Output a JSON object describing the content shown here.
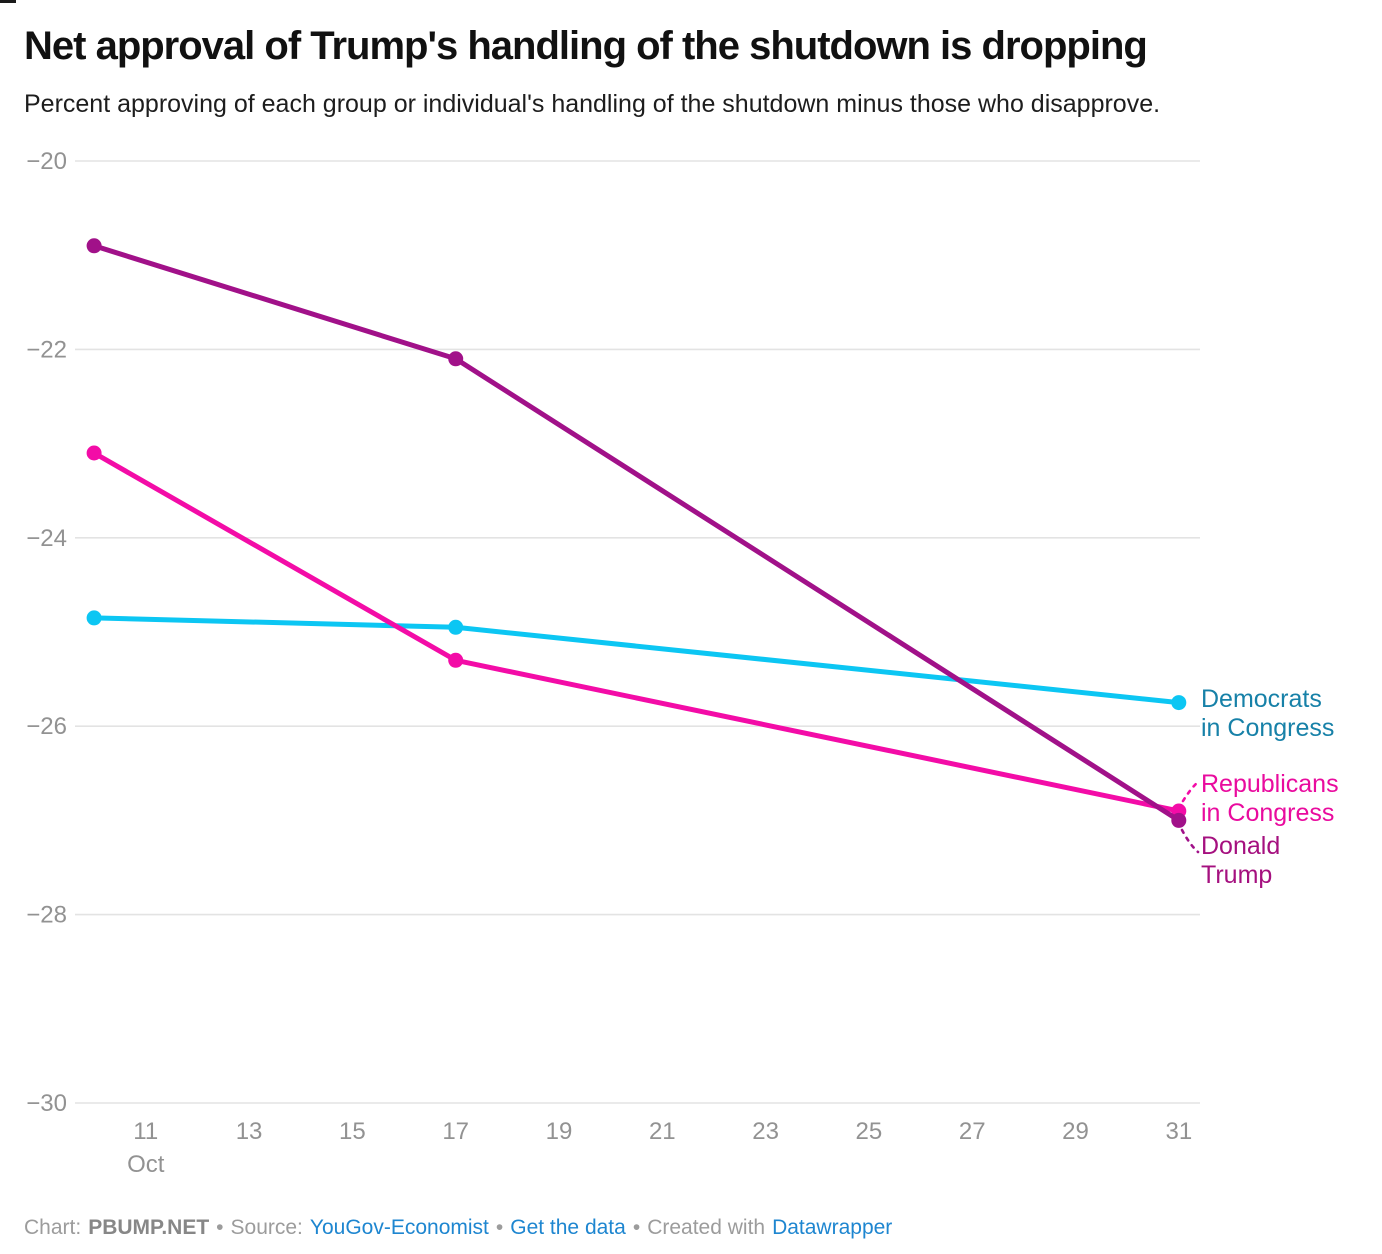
{
  "header": {
    "title": "Net approval of Trump's handling of the shutdown is dropping",
    "subtitle": "Percent approving of each group or individual's handling of the shutdown minus those who disapprove."
  },
  "chart_data": {
    "type": "line",
    "title": "Net approval of Trump's handling of the shutdown is dropping",
    "xlabel": "",
    "ylabel": "",
    "grid": "horizontal gridlines on",
    "legend_position": "direct end-of-line labels at right",
    "xlim": [
      9.63,
      31.41
    ],
    "ylim": [
      -30,
      -20
    ],
    "x": [
      10,
      17,
      31
    ],
    "x_ticks": [
      {
        "day": 11,
        "label": "11",
        "sublabel": "Oct"
      },
      {
        "day": 13,
        "label": "13"
      },
      {
        "day": 15,
        "label": "15"
      },
      {
        "day": 17,
        "label": "17"
      },
      {
        "day": 19,
        "label": "19"
      },
      {
        "day": 21,
        "label": "21"
      },
      {
        "day": 23,
        "label": "23"
      },
      {
        "day": 25,
        "label": "25"
      },
      {
        "day": 27,
        "label": "27"
      },
      {
        "day": 29,
        "label": "29"
      },
      {
        "day": 31,
        "label": "31"
      }
    ],
    "y_ticks": [
      {
        "value": -20,
        "label": "−20"
      },
      {
        "value": -22,
        "label": "−22"
      },
      {
        "value": -24,
        "label": "−24"
      },
      {
        "value": -26,
        "label": "−26"
      },
      {
        "value": -28,
        "label": "−28"
      },
      {
        "value": -30,
        "label": "−30"
      }
    ],
    "series": [
      {
        "id": "democrats",
        "name": "Democrats in Congress",
        "label_lines": [
          "Democrats",
          "in Congress"
        ],
        "color": "#0cc6f3",
        "label_color": "#1781a8",
        "values": [
          -24.85,
          -24.95,
          -25.75
        ]
      },
      {
        "id": "republicans",
        "name": "Republicans in Congress",
        "label_lines": [
          "Republicans",
          "in Congress"
        ],
        "color": "#f30ca7",
        "label_color": "#e90b9e",
        "values": [
          -23.1,
          -25.3,
          -26.9
        ]
      },
      {
        "id": "trump",
        "name": "Donald Trump",
        "label_lines": [
          "Donald",
          "Trump"
        ],
        "color": "#a11189",
        "label_color": "#a5107f",
        "values": [
          -20.9,
          -22.1,
          -27.0
        ]
      }
    ],
    "grid_color": "#e3e3e3",
    "tick_color": "#929292"
  },
  "footer": {
    "chart_prefix": "Chart:",
    "chart_name": "PBUMP.NET",
    "sep": "•",
    "source_prefix": "Source:",
    "source_link": "YouGov-Economist",
    "data_link": "Get the data",
    "created_prefix": "Created with",
    "created_link": "Datawrapper",
    "link_color": "#1e86d0"
  }
}
